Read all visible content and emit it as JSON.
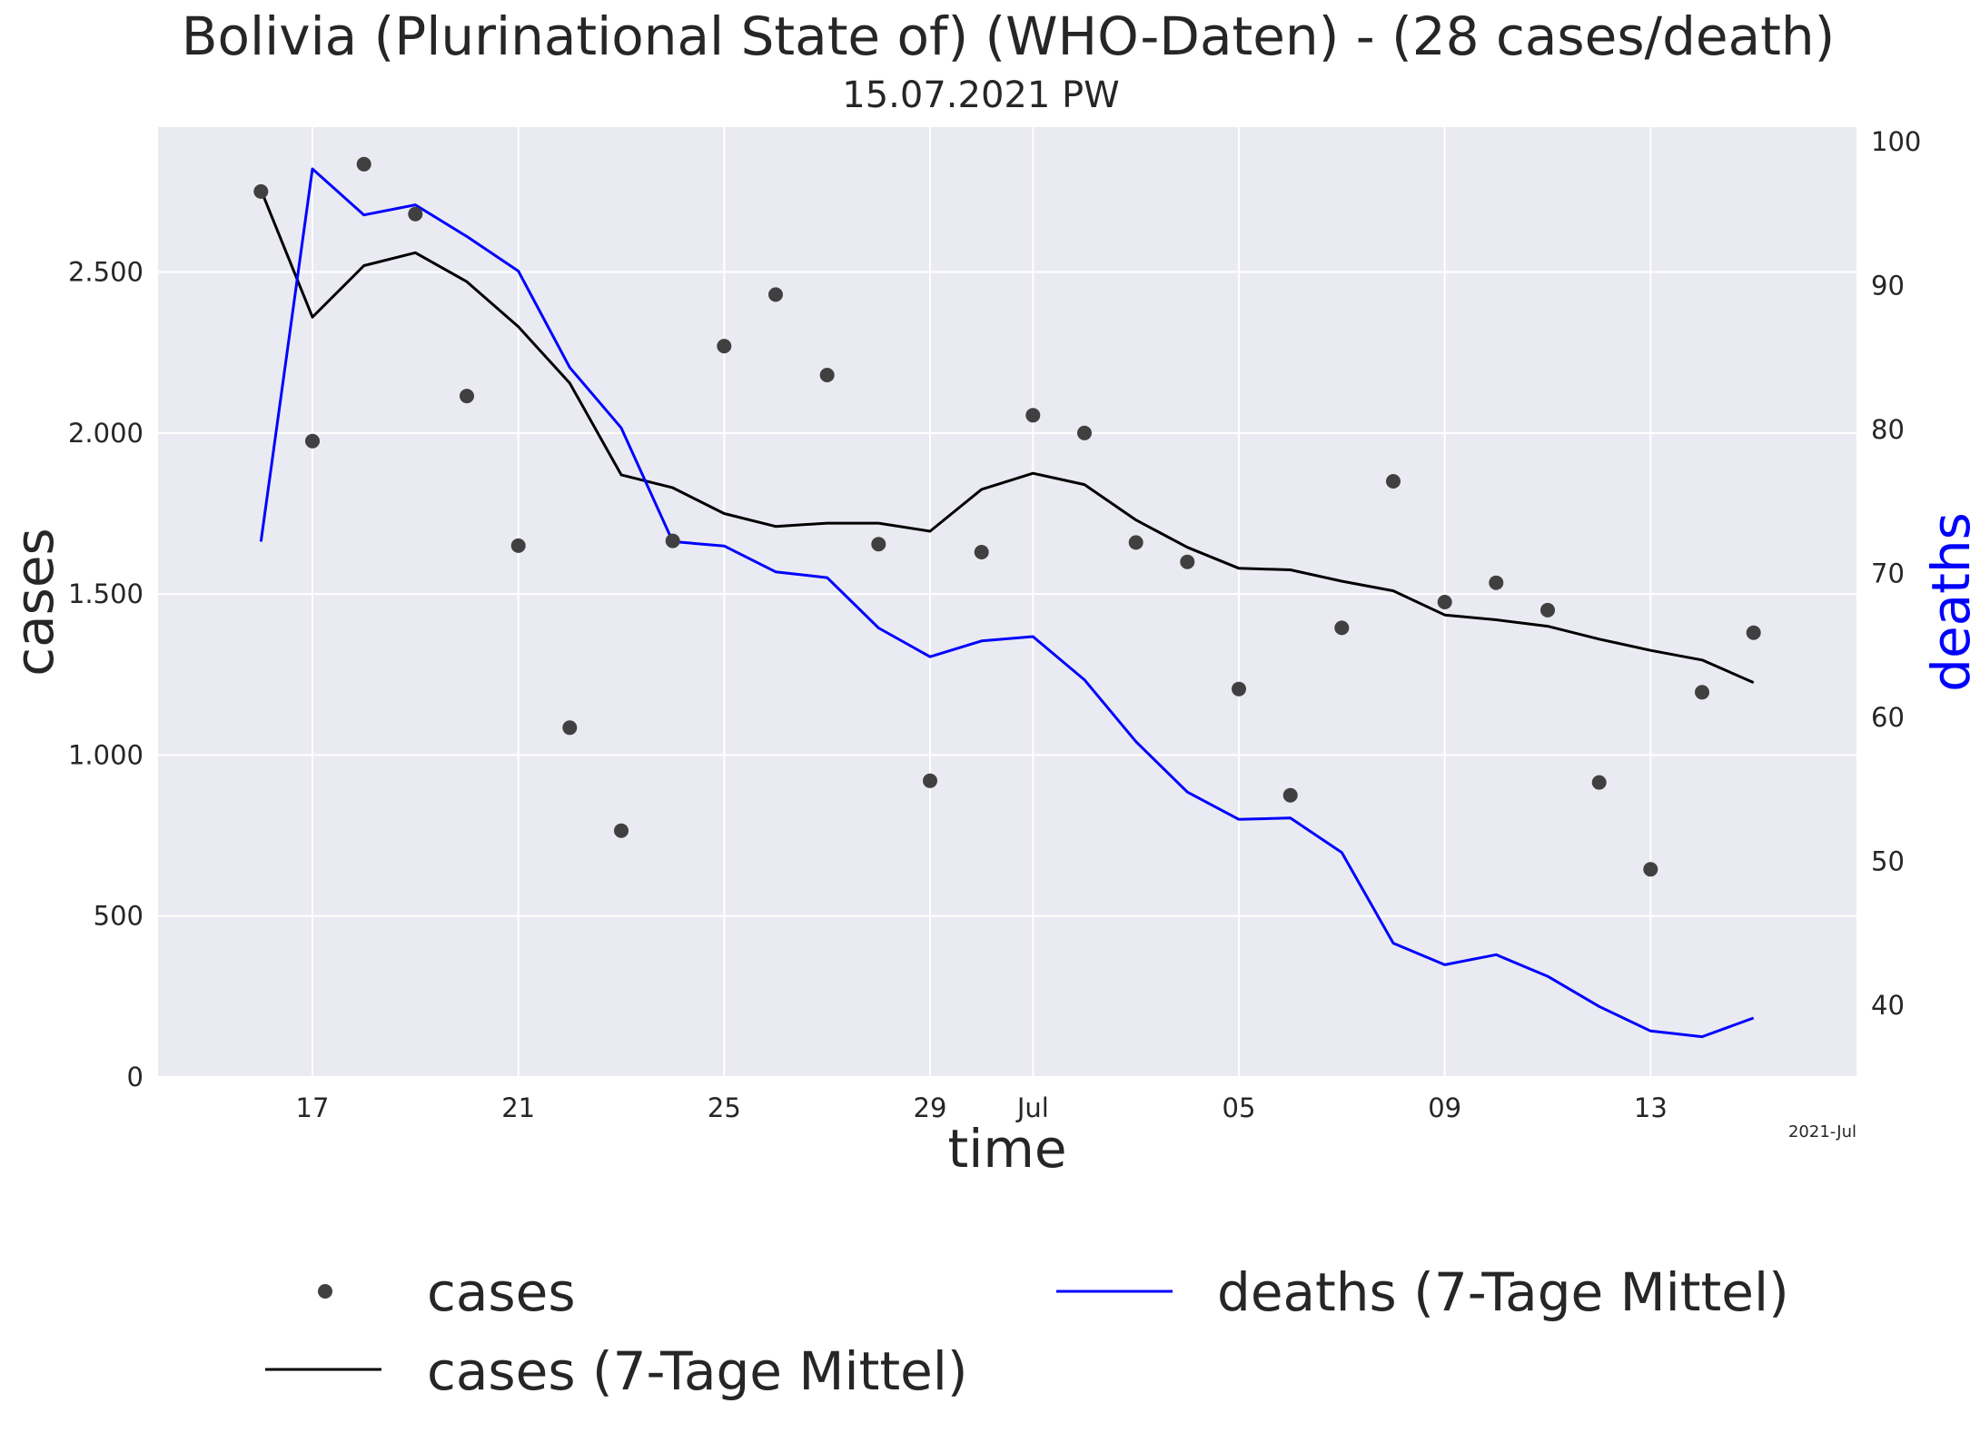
{
  "chart_data": {
    "type": "line",
    "title": "Bolivia (Plurinational State of) (WHO-Daten) - (28 cases/death)",
    "subtitle": "15.07.2021 PW",
    "xlabel": "time",
    "ylabel_left": "cases",
    "ylabel_right": "deaths",
    "x_offset_label": "2021-Jul",
    "grid": true,
    "legend_position": "bottom",
    "colors": {
      "plot_bg": "#eaeaf2",
      "grid": "#ffffff",
      "cases_dots": "#404040",
      "cases_avg": "#000000",
      "deaths_avg": "#0000ff",
      "right_axis_label": "#0000ff"
    },
    "x_dates": [
      "2021-06-16",
      "2021-06-17",
      "2021-06-18",
      "2021-06-19",
      "2021-06-20",
      "2021-06-21",
      "2021-06-22",
      "2021-06-23",
      "2021-06-24",
      "2021-06-25",
      "2021-06-26",
      "2021-06-27",
      "2021-06-28",
      "2021-06-29",
      "2021-06-30",
      "2021-07-01",
      "2021-07-02",
      "2021-07-03",
      "2021-07-04",
      "2021-07-05",
      "2021-07-06",
      "2021-07-07",
      "2021-07-08",
      "2021-07-09",
      "2021-07-10",
      "2021-07-11",
      "2021-07-12",
      "2021-07-13",
      "2021-07-14",
      "2021-07-15"
    ],
    "x_range": [
      "2021-06-14",
      "2021-07-17"
    ],
    "x_ticks": [
      {
        "date": "2021-06-17",
        "label": "17"
      },
      {
        "date": "2021-06-21",
        "label": "21"
      },
      {
        "date": "2021-06-25",
        "label": "25"
      },
      {
        "date": "2021-06-29",
        "label": "29"
      },
      {
        "date": "2021-07-01",
        "label": "Jul"
      },
      {
        "date": "2021-07-05",
        "label": "05"
      },
      {
        "date": "2021-07-09",
        "label": "09"
      },
      {
        "date": "2021-07-13",
        "label": "13"
      }
    ],
    "y_left": {
      "range": [
        0,
        2950
      ],
      "ticks": [
        0,
        500,
        1000,
        1500,
        2000,
        2500
      ],
      "tick_labels": [
        "0",
        "500",
        "1.000",
        "1.500",
        "2.000",
        "2.500"
      ]
    },
    "y_right": {
      "range": [
        35,
        101
      ],
      "ticks": [
        40,
        50,
        60,
        70,
        80,
        90,
        100
      ],
      "tick_labels": [
        "40",
        "50",
        "60",
        "70",
        "80",
        "90",
        "100"
      ]
    },
    "series": [
      {
        "name": "cases",
        "kind": "scatter",
        "axis": "left",
        "values": [
          2750,
          1975,
          2835,
          2680,
          2115,
          1650,
          1085,
          765,
          1665,
          2270,
          2430,
          2180,
          1655,
          920,
          1630,
          2055,
          2000,
          1660,
          1600,
          1205,
          875,
          1395,
          1850,
          1475,
          1535,
          1450,
          915,
          645,
          1195,
          1380
        ]
      },
      {
        "name": "cases (7-Tage Mittel)",
        "kind": "line",
        "axis": "left",
        "values": [
          2755,
          2360,
          2520,
          2560,
          2470,
          2330,
          2155,
          1870,
          1830,
          1750,
          1710,
          1720,
          1720,
          1695,
          1825,
          1875,
          1840,
          1730,
          1645,
          1580,
          1575,
          1540,
          1510,
          1435,
          1420,
          1400,
          1360,
          1325,
          1295,
          1225
        ]
      },
      {
        "name": "deaths (7-Tage Mittel)",
        "kind": "line",
        "axis": "right",
        "values": [
          72.2,
          98.1,
          94.9,
          95.6,
          93.4,
          91.0,
          84.3,
          80.1,
          72.2,
          71.9,
          70.1,
          69.7,
          66.2,
          64.2,
          65.3,
          65.6,
          62.6,
          58.3,
          54.8,
          52.9,
          53.0,
          50.6,
          44.3,
          42.8,
          43.5,
          42.0,
          39.9,
          38.2,
          37.8,
          39.1
        ]
      }
    ],
    "legend": [
      {
        "label": "cases",
        "series": 0
      },
      {
        "label": "cases (7-Tage Mittel)",
        "series": 1
      },
      {
        "label": "deaths (7-Tage Mittel)",
        "series": 2
      }
    ]
  }
}
